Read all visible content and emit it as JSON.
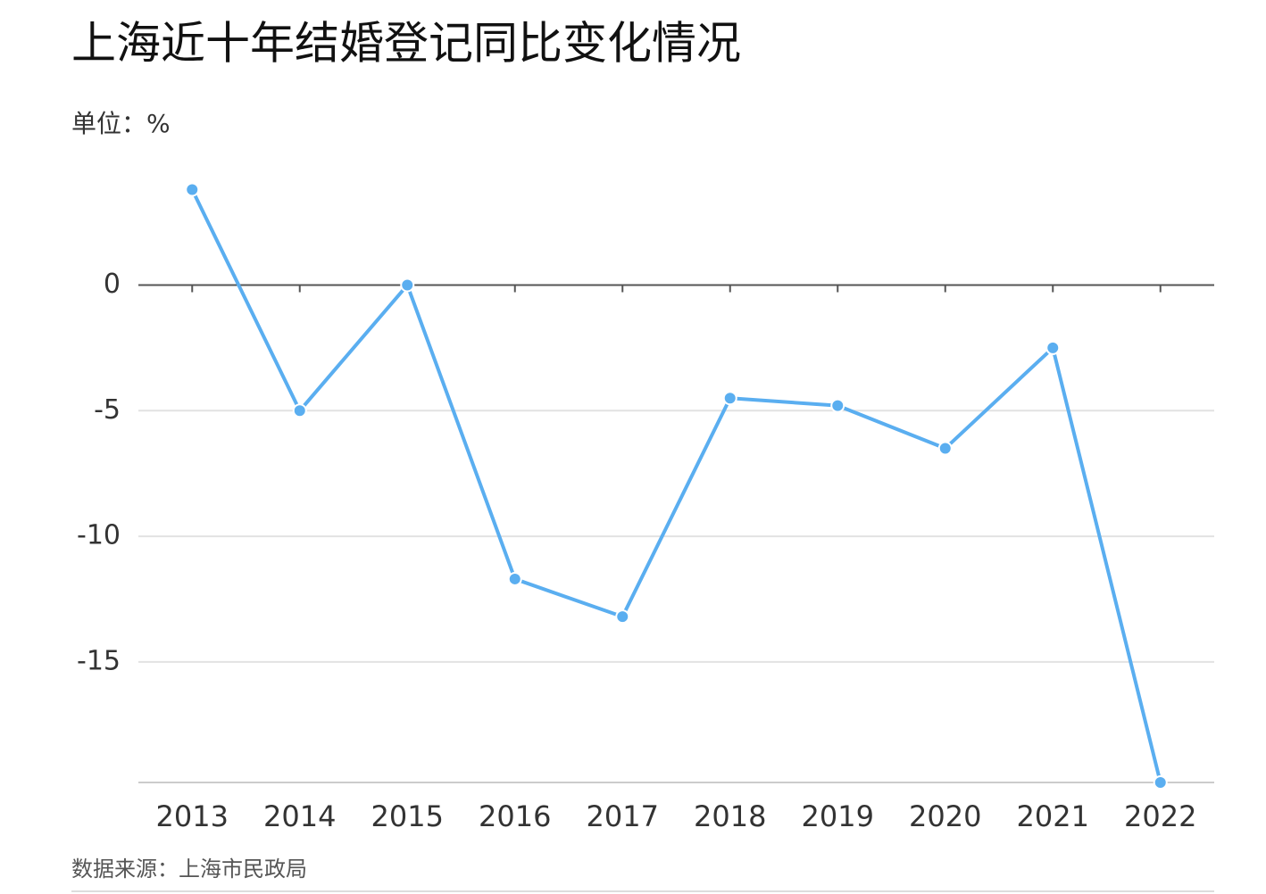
{
  "chart_data": {
    "type": "line",
    "title": "上海近十年结婚登记同比变化情况",
    "subtitle": "单位：%",
    "source": "数据来源：上海市民政局",
    "categories": [
      "2013",
      "2014",
      "2015",
      "2016",
      "2017",
      "2018",
      "2019",
      "2020",
      "2021",
      "2022"
    ],
    "series": [
      {
        "name": "结婚登记同比变化",
        "color": "#5aaef0",
        "values": [
          3.8,
          -5.0,
          0,
          -11.7,
          -13.2,
          -4.5,
          -4.8,
          -6.5,
          -2.5,
          -19.8
        ]
      }
    ],
    "ylim": [
      -19.8,
      4.6
    ],
    "yticks": [
      0,
      -5,
      -10,
      -15
    ],
    "grid": true
  }
}
